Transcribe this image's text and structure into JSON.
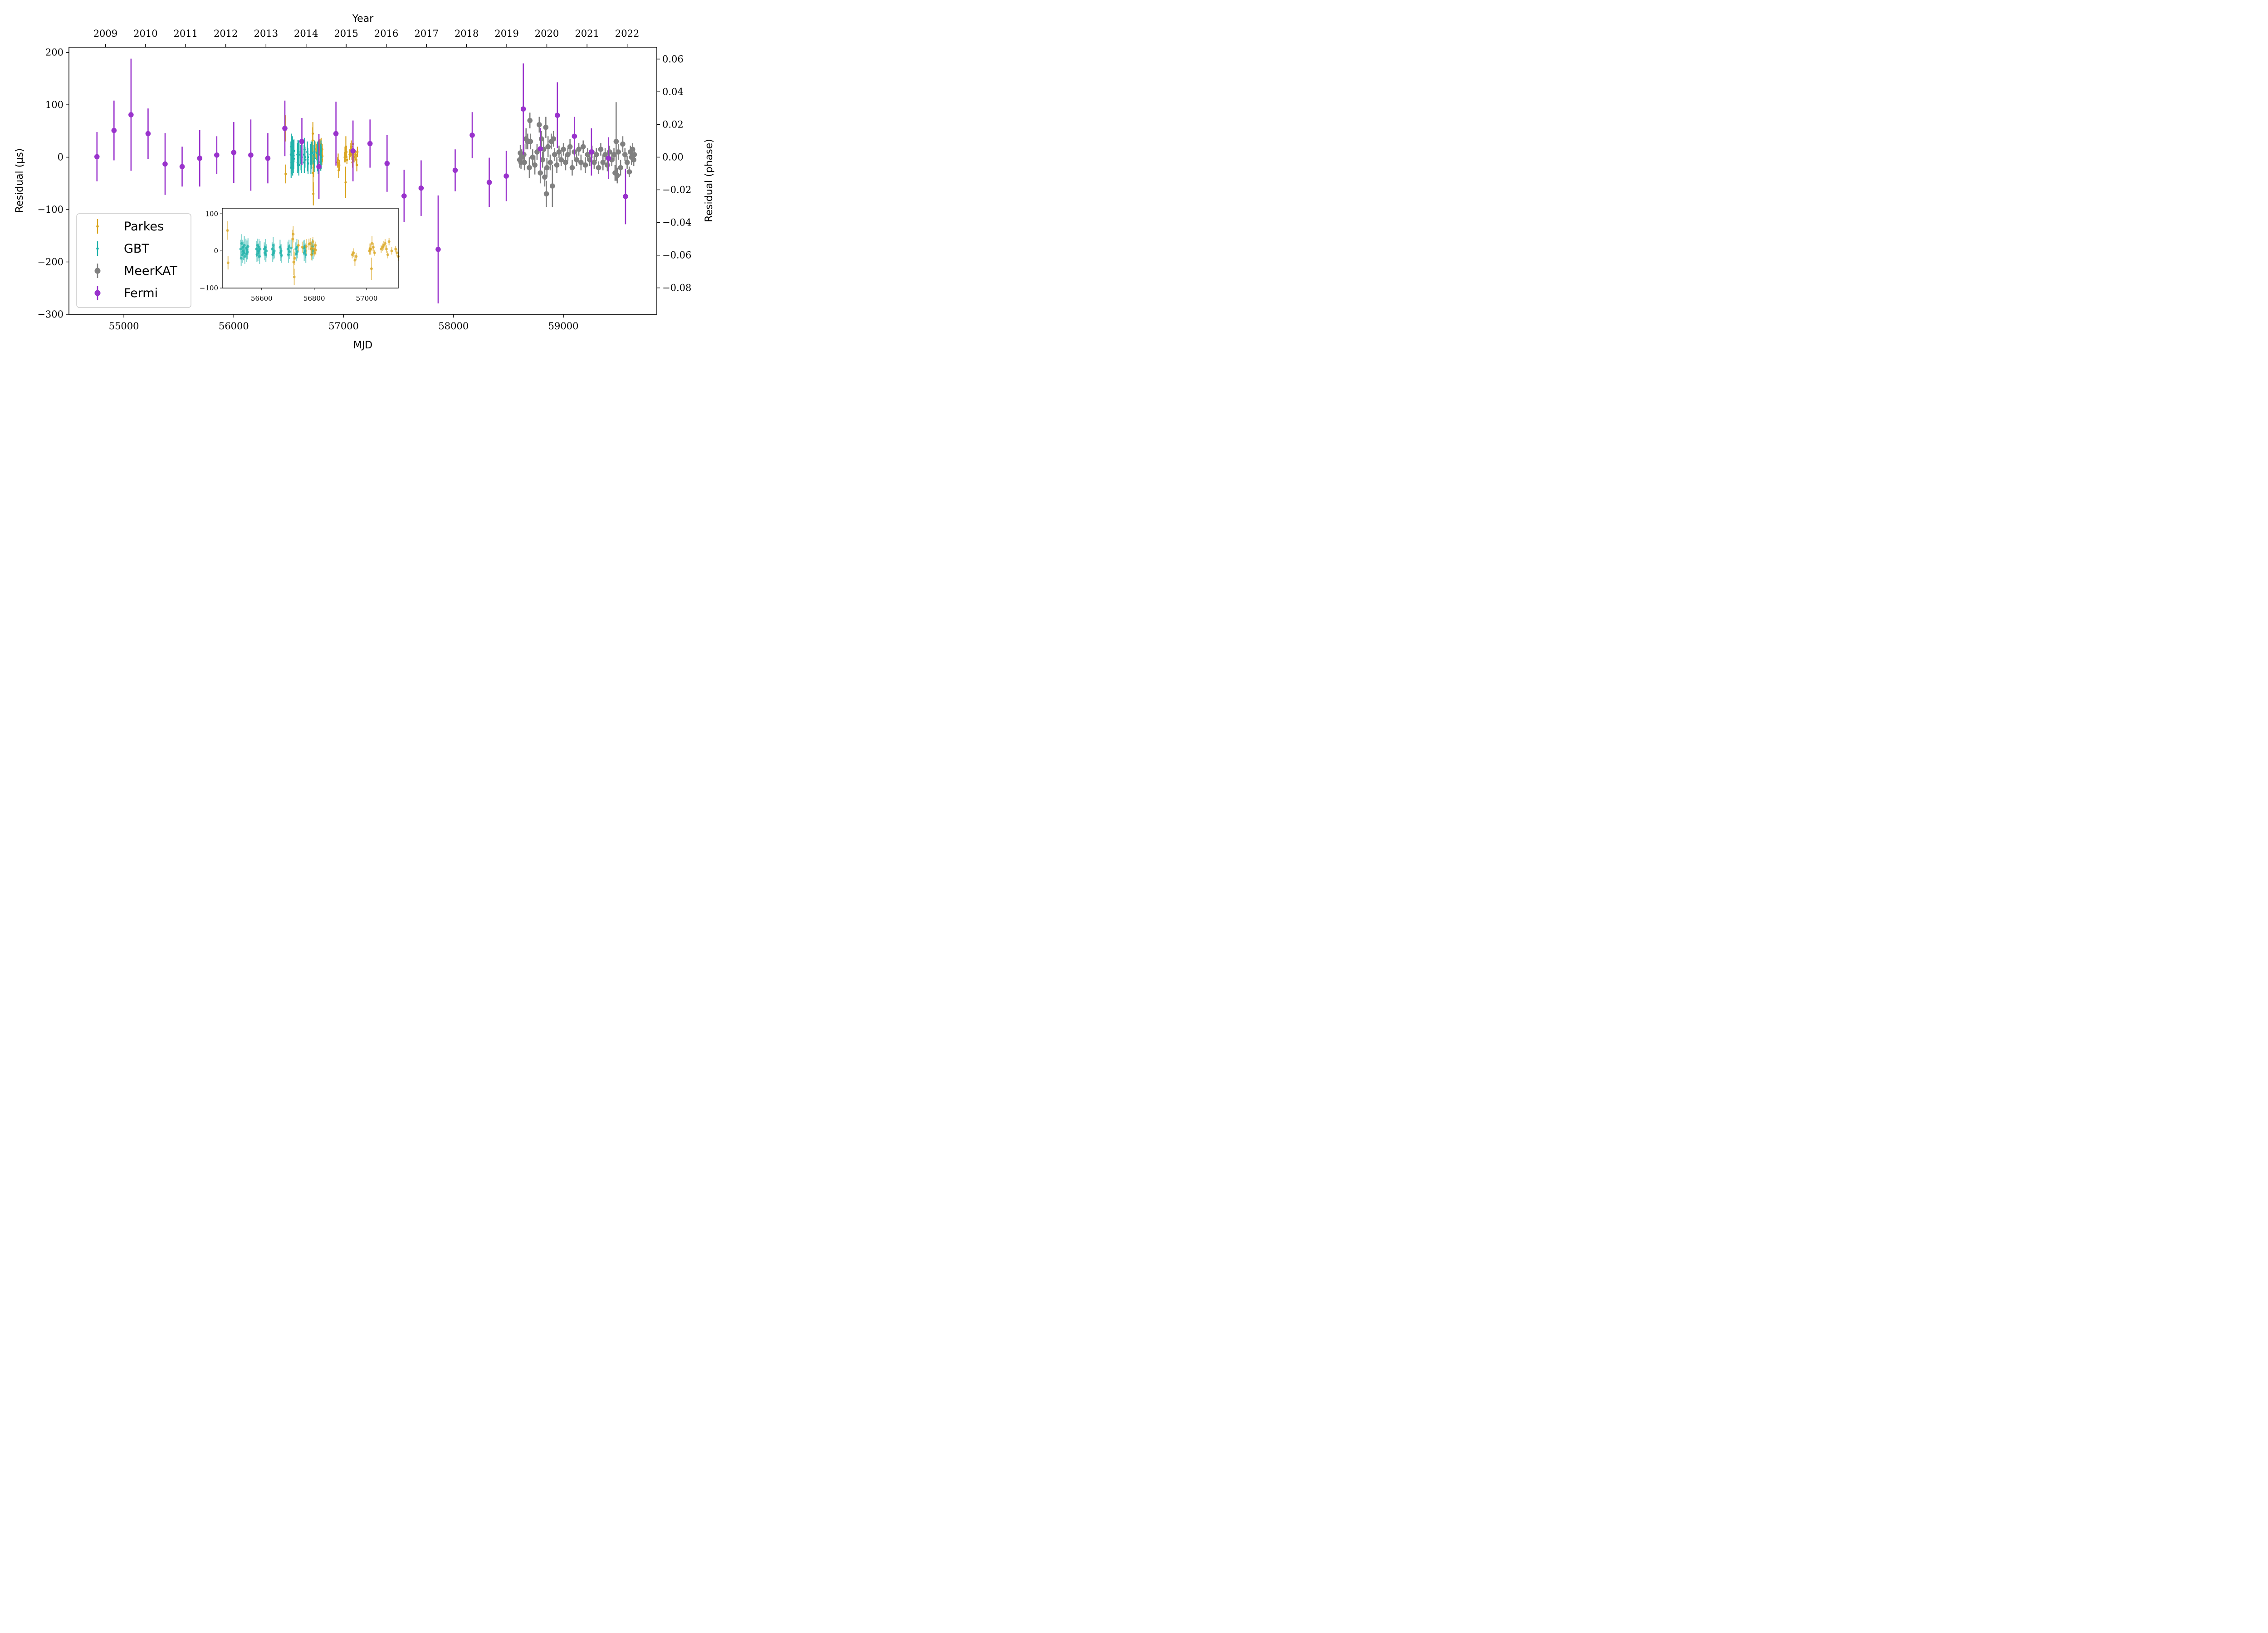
{
  "chart_data": {
    "type": "scatter",
    "xlabel": "MJD",
    "ylabel": "Residual (μs)",
    "ylabel_right": "Residual (phase)",
    "xlabel_top": "Year",
    "xlim": [
      54500,
      59850
    ],
    "ylim": [
      -300,
      210
    ],
    "ylim_right": [
      -0.0962,
      0.0673
    ],
    "grid": false,
    "legend_position": "lower-left",
    "x_ticks": [
      {
        "value": 55000,
        "label": "55000"
      },
      {
        "value": 56000,
        "label": "56000"
      },
      {
        "value": 57000,
        "label": "57000"
      },
      {
        "value": 58000,
        "label": "58000"
      },
      {
        "value": 59000,
        "label": "59000"
      }
    ],
    "y_ticks": [
      {
        "value": 200,
        "label": "200"
      },
      {
        "value": 100,
        "label": "100"
      },
      {
        "value": 0,
        "label": "0"
      },
      {
        "value": -100,
        "label": "−100"
      },
      {
        "value": -200,
        "label": "−200"
      },
      {
        "value": -300,
        "label": "−300"
      }
    ],
    "y_ticks_right": [
      {
        "value": 0.06,
        "label": "0.06"
      },
      {
        "value": 0.04,
        "label": "0.04"
      },
      {
        "value": 0.02,
        "label": "0.02"
      },
      {
        "value": 0.0,
        "label": "0.00"
      },
      {
        "value": -0.02,
        "label": "−0.02"
      },
      {
        "value": -0.04,
        "label": "−0.04"
      },
      {
        "value": -0.06,
        "label": "−0.06"
      },
      {
        "value": -0.08,
        "label": "−0.08"
      }
    ],
    "year_ticks": [
      {
        "mjd": 54832,
        "label": "2009"
      },
      {
        "mjd": 55197,
        "label": "2010"
      },
      {
        "mjd": 55562,
        "label": "2011"
      },
      {
        "mjd": 55927,
        "label": "2012"
      },
      {
        "mjd": 56293,
        "label": "2013"
      },
      {
        "mjd": 56658,
        "label": "2014"
      },
      {
        "mjd": 57023,
        "label": "2015"
      },
      {
        "mjd": 57388,
        "label": "2016"
      },
      {
        "mjd": 57754,
        "label": "2017"
      },
      {
        "mjd": 58119,
        "label": "2018"
      },
      {
        "mjd": 58484,
        "label": "2019"
      },
      {
        "mjd": 58849,
        "label": "2020"
      },
      {
        "mjd": 59215,
        "label": "2021"
      },
      {
        "mjd": 59580,
        "label": "2022"
      }
    ],
    "series": [
      {
        "name": "Parkes",
        "color": "#daa520",
        "marker": "small-dot",
        "points": [
          [
            56470,
            55,
            25
          ],
          [
            56472,
            -32,
            18
          ],
          [
            56718,
            32,
            25
          ],
          [
            56720,
            45,
            22
          ],
          [
            56722,
            -30,
            35
          ],
          [
            56724,
            -70,
            22
          ],
          [
            56726,
            -20,
            18
          ],
          [
            56740,
            15,
            15
          ],
          [
            56755,
            10,
            15
          ],
          [
            56770,
            12,
            20
          ],
          [
            56780,
            18,
            15
          ],
          [
            56785,
            20,
            15
          ],
          [
            56788,
            5,
            15
          ],
          [
            56790,
            -10,
            15
          ],
          [
            56792,
            8,
            12
          ],
          [
            56795,
            25,
            12
          ],
          [
            56800,
            5,
            15
          ],
          [
            56802,
            -5,
            10
          ],
          [
            56805,
            15,
            10
          ],
          [
            56806,
            2,
            12
          ],
          [
            56945,
            -10,
            10
          ],
          [
            56950,
            -5,
            12
          ],
          [
            56955,
            -25,
            15
          ],
          [
            56960,
            -15,
            10
          ],
          [
            57010,
            0,
            10
          ],
          [
            57012,
            5,
            15
          ],
          [
            57015,
            5,
            15
          ],
          [
            57018,
            -48,
            30
          ],
          [
            57020,
            20,
            20
          ],
          [
            57025,
            10,
            12
          ],
          [
            57030,
            -5,
            8
          ],
          [
            57055,
            5,
            10
          ],
          [
            57060,
            10,
            10
          ],
          [
            57065,
            15,
            12
          ],
          [
            57070,
            20,
            12
          ],
          [
            57075,
            5,
            10
          ],
          [
            57080,
            -10,
            10
          ],
          [
            57085,
            25,
            10
          ],
          [
            57095,
            0,
            10
          ],
          [
            57110,
            5,
            8
          ],
          [
            57115,
            -5,
            10
          ],
          [
            57120,
            -15,
            12
          ],
          [
            57125,
            10,
            10
          ]
        ]
      },
      {
        "name": "GBT",
        "color": "#20b2aa",
        "marker": "small-dot",
        "points": [
          [
            56520,
            5,
            25
          ],
          [
            56522,
            -20,
            20
          ],
          [
            56524,
            20,
            25
          ],
          [
            56526,
            -10,
            22
          ],
          [
            56528,
            10,
            20
          ],
          [
            56530,
            0,
            25
          ],
          [
            56532,
            -5,
            20
          ],
          [
            56534,
            15,
            25
          ],
          [
            56536,
            -15,
            20
          ],
          [
            56540,
            8,
            25
          ],
          [
            56542,
            -8,
            22
          ],
          [
            56544,
            3,
            25
          ],
          [
            56546,
            -3,
            20
          ],
          [
            56548,
            12,
            22
          ],
          [
            56580,
            5,
            22
          ],
          [
            56582,
            -10,
            20
          ],
          [
            56584,
            15,
            18
          ],
          [
            56586,
            -5,
            22
          ],
          [
            56588,
            0,
            20
          ],
          [
            56590,
            10,
            22
          ],
          [
            56592,
            -15,
            20
          ],
          [
            56594,
            5,
            22
          ],
          [
            56610,
            5,
            18
          ],
          [
            56612,
            -5,
            20
          ],
          [
            56614,
            10,
            22
          ],
          [
            56616,
            -10,
            20
          ],
          [
            56618,
            0,
            18
          ],
          [
            56640,
            5,
            18
          ],
          [
            56642,
            -10,
            20
          ],
          [
            56644,
            15,
            22
          ],
          [
            56646,
            -5,
            18
          ],
          [
            56648,
            0,
            20
          ],
          [
            56670,
            10,
            20
          ],
          [
            56672,
            -5,
            22
          ],
          [
            56674,
            0,
            18
          ],
          [
            56676,
            -12,
            20
          ],
          [
            56700,
            5,
            20
          ],
          [
            56702,
            -10,
            22
          ],
          [
            56704,
            12,
            18
          ],
          [
            56706,
            -2,
            20
          ],
          [
            56712,
            8,
            22
          ],
          [
            56730,
            5,
            18
          ],
          [
            56732,
            -8,
            20
          ],
          [
            56734,
            10,
            22
          ],
          [
            56736,
            -2,
            18
          ],
          [
            56760,
            8,
            20
          ],
          [
            56762,
            -5,
            22
          ],
          [
            56764,
            12,
            18
          ],
          [
            56766,
            0,
            20
          ],
          [
            56768,
            -10,
            22
          ],
          [
            56790,
            5,
            20
          ],
          [
            56792,
            -8,
            18
          ],
          [
            56794,
            12,
            20
          ],
          [
            56796,
            0,
            22
          ]
        ]
      },
      {
        "name": "MeerKAT",
        "color": "#808080",
        "marker": "dot",
        "points": [
          [
            58602,
            -5,
            15
          ],
          [
            58608,
            8,
            15
          ],
          [
            58614,
            -10,
            12
          ],
          [
            58620,
            0,
            15
          ],
          [
            58640,
            5,
            20
          ],
          [
            58645,
            -10,
            15
          ],
          [
            58660,
            35,
            20
          ],
          [
            58675,
            30,
            15
          ],
          [
            58690,
            -20,
            20
          ],
          [
            58695,
            70,
            15
          ],
          [
            58700,
            30,
            15
          ],
          [
            58720,
            0,
            15
          ],
          [
            58740,
            -15,
            18
          ],
          [
            58760,
            10,
            15
          ],
          [
            58780,
            62,
            15
          ],
          [
            58790,
            -30,
            20
          ],
          [
            58800,
            35,
            15
          ],
          [
            58810,
            -5,
            15
          ],
          [
            58820,
            15,
            18
          ],
          [
            58830,
            -38,
            18
          ],
          [
            58840,
            57,
            20
          ],
          [
            58845,
            -70,
            25
          ],
          [
            58850,
            -20,
            18
          ],
          [
            58860,
            20,
            20
          ],
          [
            58880,
            -10,
            15
          ],
          [
            58890,
            30,
            15
          ],
          [
            58900,
            -55,
            40
          ],
          [
            58910,
            35,
            15
          ],
          [
            58920,
            5,
            12
          ],
          [
            58940,
            -15,
            15
          ],
          [
            58960,
            10,
            12
          ],
          [
            58980,
            -5,
            12
          ],
          [
            59000,
            15,
            12
          ],
          [
            59020,
            -10,
            15
          ],
          [
            59040,
            5,
            12
          ],
          [
            59060,
            20,
            15
          ],
          [
            59080,
            -20,
            15
          ],
          [
            59100,
            10,
            12
          ],
          [
            59120,
            -5,
            12
          ],
          [
            59140,
            15,
            12
          ],
          [
            59160,
            -10,
            15
          ],
          [
            59180,
            20,
            12
          ],
          [
            59200,
            -15,
            15
          ],
          [
            59220,
            5,
            12
          ],
          [
            59240,
            -5,
            12
          ],
          [
            59260,
            10,
            12
          ],
          [
            59280,
            -10,
            12
          ],
          [
            59300,
            5,
            12
          ],
          [
            59320,
            -20,
            12
          ],
          [
            59340,
            15,
            12
          ],
          [
            59360,
            -10,
            15
          ],
          [
            59380,
            5,
            12
          ],
          [
            59400,
            -15,
            12
          ],
          [
            59420,
            10,
            12
          ],
          [
            59440,
            -5,
            12
          ],
          [
            59460,
            5,
            12
          ],
          [
            59470,
            -30,
            15
          ],
          [
            59480,
            30,
            75
          ],
          [
            59490,
            -35,
            15
          ],
          [
            59500,
            10,
            15
          ],
          [
            59520,
            -20,
            15
          ],
          [
            59540,
            25,
            15
          ],
          [
            59560,
            5,
            12
          ],
          [
            59580,
            -10,
            12
          ],
          [
            59600,
            -28,
            10
          ],
          [
            59610,
            10,
            12
          ],
          [
            59620,
            0,
            15
          ],
          [
            59630,
            15,
            12
          ],
          [
            59640,
            -5,
            12
          ],
          [
            59645,
            5,
            10
          ]
        ]
      },
      {
        "name": "Fermi",
        "color": "#9932cc",
        "marker": "dot",
        "points": [
          [
            54755,
            1,
            47
          ],
          [
            54910,
            51,
            57
          ],
          [
            55065,
            81,
            107
          ],
          [
            55220,
            45,
            48
          ],
          [
            55375,
            -13,
            59
          ],
          [
            55530,
            -18,
            38
          ],
          [
            55690,
            -2,
            54
          ],
          [
            55845,
            4,
            36
          ],
          [
            56000,
            9,
            58
          ],
          [
            56155,
            4,
            68
          ],
          [
            56310,
            -2,
            48
          ],
          [
            56465,
            55,
            53
          ],
          [
            56620,
            30,
            45
          ],
          [
            56775,
            -18,
            62
          ],
          [
            56930,
            45,
            61
          ],
          [
            57085,
            12,
            58
          ],
          [
            57240,
            26,
            46
          ],
          [
            57395,
            -12,
            54
          ],
          [
            57550,
            -74,
            50
          ],
          [
            57705,
            -59,
            53
          ],
          [
            57860,
            -176,
            103
          ],
          [
            58015,
            -25,
            40
          ],
          [
            58170,
            42,
            44
          ],
          [
            58325,
            -48,
            47
          ],
          [
            58480,
            -36,
            48
          ],
          [
            58635,
            92,
            87
          ],
          [
            58790,
            16,
            40
          ],
          [
            58945,
            80,
            63
          ],
          [
            59100,
            40,
            37
          ],
          [
            59255,
            10,
            45
          ],
          [
            59410,
            -2,
            40
          ],
          [
            59565,
            -75,
            53
          ]
        ]
      }
    ],
    "inset": {
      "xlim": [
        56450,
        57120
      ],
      "ylim": [
        -100,
        115
      ],
      "x_ticks": [
        {
          "value": 56600,
          "label": "56600"
        },
        {
          "value": 56800,
          "label": "56800"
        },
        {
          "value": 57000,
          "label": "57000"
        }
      ],
      "y_ticks": [
        {
          "value": 100,
          "label": "100"
        },
        {
          "value": 0,
          "label": "0"
        },
        {
          "value": -100,
          "label": "−100"
        }
      ],
      "series_shown": [
        "GBT",
        "Parkes"
      ]
    }
  }
}
